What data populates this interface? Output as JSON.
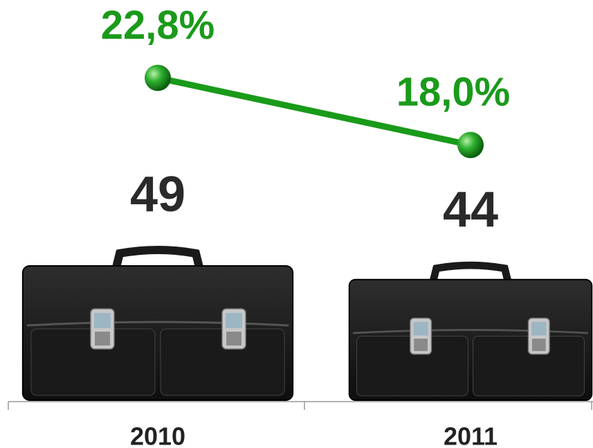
{
  "chart_data": {
    "type": "bar-line",
    "categories": [
      "2010",
      "2011"
    ],
    "series": [
      {
        "type": "bar",
        "values": [
          49,
          44
        ],
        "color": "#1c1c1c"
      },
      {
        "type": "line",
        "values": [
          22.8,
          18.0
        ],
        "value_labels": [
          "22,8%",
          "18,0%"
        ],
        "color": "#1a9a1a"
      }
    ]
  }
}
